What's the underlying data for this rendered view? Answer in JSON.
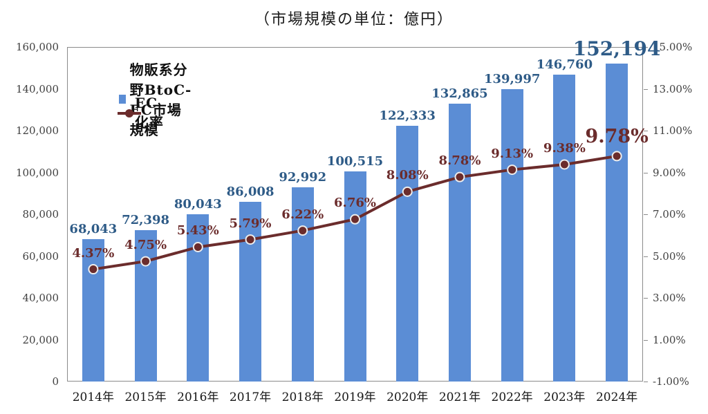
{
  "title": "（市場規模の単位：億円）",
  "legend": [
    {
      "label": "物販系分野BtoC-EC市場規模",
      "type": "bar"
    },
    {
      "label": "EC化率",
      "type": "line"
    }
  ],
  "colors": {
    "bar": "#5B8DD5",
    "bar_label": "#2E5B87",
    "line": "#6B2C2C",
    "marker_ring": "#EDEDED",
    "pct_label": "#6B2C2C",
    "axis_text": "#3F3F3F",
    "x_axis_text": "#161616",
    "border": "#8A8A8A",
    "title_text": "#1A1A1A",
    "legend_text": "#111111"
  },
  "chart_data": {
    "type": "bar+line-combo",
    "categories": [
      "2014年",
      "2015年",
      "2016年",
      "2017年",
      "2018年",
      "2019年",
      "2020年",
      "2021年",
      "2022年",
      "2023年",
      "2024年"
    ],
    "series": [
      {
        "name": "物販系分野BtoC-EC市場規模",
        "type": "bar",
        "axis": "left",
        "values": [
          68043,
          72398,
          80043,
          86008,
          92992,
          100515,
          122333,
          132865,
          139997,
          146760,
          152194
        ],
        "labels": [
          "68,043",
          "72,398",
          "80,043",
          "86,008",
          "92,992",
          "100,515",
          "122,333",
          "132,865",
          "139,997",
          "146,760",
          "152,194"
        ]
      },
      {
        "name": "EC化率",
        "type": "line",
        "axis": "right",
        "values": [
          4.37,
          4.75,
          5.43,
          5.79,
          6.22,
          6.76,
          8.08,
          8.78,
          9.13,
          9.38,
          9.78
        ],
        "labels": [
          "4.37%",
          "4.75%",
          "5.43%",
          "5.79%",
          "6.22%",
          "6.76%",
          "8.08%",
          "8.78%",
          "9.13%",
          "9.38%",
          "9.78%"
        ]
      }
    ],
    "left_axis": {
      "min": 0,
      "max": 160000,
      "step": 20000,
      "ticks": [
        {
          "value": 160000,
          "label": "160,000"
        },
        {
          "value": 140000,
          "label": "140,000"
        },
        {
          "value": 120000,
          "label": "120,000"
        },
        {
          "value": 100000,
          "label": "100,000"
        },
        {
          "value": 80000,
          "label": "80,000"
        },
        {
          "value": 60000,
          "label": "60,000"
        },
        {
          "value": 40000,
          "label": "40,000"
        },
        {
          "value": 20000,
          "label": "20,000"
        },
        {
          "value": 0,
          "label": "0"
        }
      ]
    },
    "right_axis": {
      "min": -1,
      "max": 15,
      "step": 2,
      "ticks": [
        {
          "value": 15,
          "label": "15.00%"
        },
        {
          "value": 13,
          "label": "13.00%"
        },
        {
          "value": 11,
          "label": "11.00%"
        },
        {
          "value": 9,
          "label": "9.00%"
        },
        {
          "value": 7,
          "label": "7.00%"
        },
        {
          "value": 5,
          "label": "5.00%"
        },
        {
          "value": 3,
          "label": "3.00%"
        },
        {
          "value": 1,
          "label": "1.00%"
        },
        {
          "value": -1,
          "label": "-1.00%"
        }
      ]
    },
    "grid": false,
    "legend_position": "top-left-inside",
    "emphasized_index": 10
  }
}
